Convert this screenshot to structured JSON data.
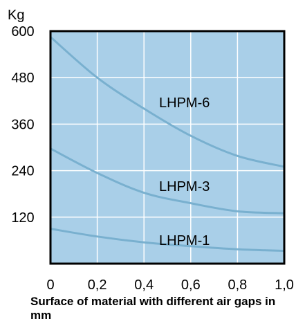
{
  "chart_data": {
    "type": "line",
    "ylabel": "Kg",
    "xlabel": "Surface of material with different air gaps in mm",
    "xlim": [
      0,
      1.0
    ],
    "ylim": [
      0,
      600
    ],
    "x_ticks": [
      "0",
      "0,2",
      "0,4",
      "0,6",
      "0,8",
      "1,0"
    ],
    "y_ticks": [
      "120",
      "240",
      "360",
      "480",
      "600"
    ],
    "grid": true,
    "x": [
      0,
      0.2,
      0.4,
      0.6,
      0.8,
      1.0
    ],
    "series": [
      {
        "name": "LHPM-6",
        "values": [
          585,
          480,
          400,
          330,
          278,
          250
        ]
      },
      {
        "name": "LHPM-3",
        "values": [
          297,
          234,
          183,
          156,
          135,
          130
        ]
      },
      {
        "name": "LHPM-1",
        "values": [
          90,
          70,
          55,
          45,
          37,
          33
        ]
      }
    ],
    "colors": {
      "plot_background": "#a9cfe8",
      "line": "#79b0cf",
      "grid": "#ffffff",
      "frame": "#000000"
    }
  }
}
